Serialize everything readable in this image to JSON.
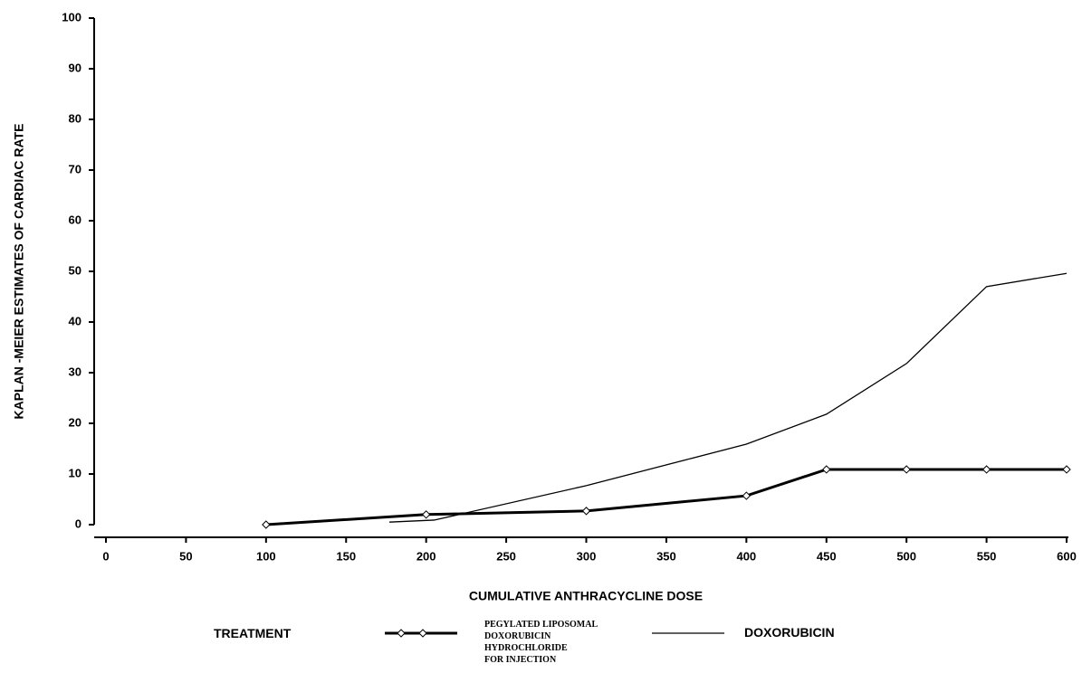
{
  "chart_data": {
    "type": "line",
    "xlabel": "CUMULATIVE ANTHRACYCLINE DOSE",
    "ylabel": "KAPLAN -MEIER ESTIMATES OF CARDIAC RATE",
    "legend_title": "TREATMENT",
    "xlim": [
      0,
      600
    ],
    "xticks": [
      0,
      50,
      100,
      150,
      200,
      250,
      300,
      350,
      400,
      450,
      500,
      550,
      600
    ],
    "ylim": [
      0,
      100
    ],
    "yticks": [
      0,
      10,
      20,
      30,
      40,
      50,
      60,
      70,
      80,
      90,
      100
    ],
    "series": [
      {
        "name": "PEGYLATED LIPOSOMAL\nDOXORUBICIN\nHYDROCHLORIDE\nFOR INJECTION",
        "color": "#000000",
        "marker": "diamond",
        "x": [
          100,
          200,
          300,
          400,
          450,
          500,
          550,
          600
        ],
        "values": [
          0,
          2,
          2.7,
          5.7,
          10.9,
          10.9,
          10.9,
          10.9
        ]
      },
      {
        "name": "DOXORUBICIN",
        "color": "#000000",
        "x": [
          177,
          205,
          300,
          400,
          450,
          500,
          550,
          600
        ],
        "values": [
          0.5,
          0.9,
          7.7,
          15.9,
          21.8,
          31.8,
          47,
          49.6
        ]
      }
    ]
  }
}
